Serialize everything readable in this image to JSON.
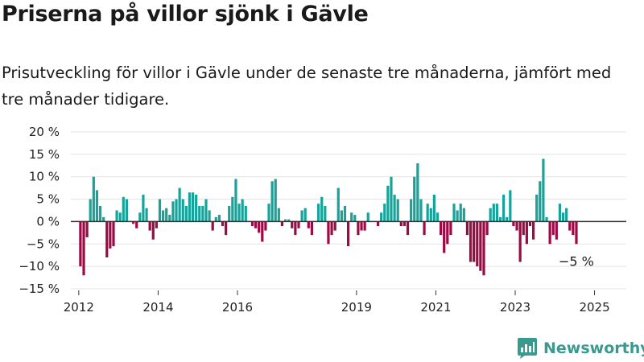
{
  "title": "Priserna på villor sjönk i Gävle",
  "subtitle": "Prisutveckling för villor i Gävle under de senaste tre månaderna, jämfört med tre månader tidigare.",
  "brand": {
    "name": "Newsworthy",
    "icon": "newsworthy-logo-icon",
    "color": "#3a9a90"
  },
  "chart_data": {
    "type": "bar",
    "ylabel": "",
    "xlabel": "",
    "ylim": [
      -15,
      20
    ],
    "yticks": [
      20,
      15,
      10,
      5,
      0,
      -5,
      -10,
      -15
    ],
    "ytick_labels": [
      "20 %",
      "15 %",
      "10 %",
      "5 %",
      "0 %",
      "−5 %",
      "−10 %",
      "−15 %"
    ],
    "xlim": [
      2011.8,
      2025.8
    ],
    "xticks": [
      2012,
      2014,
      2016,
      2019,
      2021,
      2023,
      2025
    ],
    "xtick_labels": [
      "2012",
      "2014",
      "2016",
      "2019",
      "2021",
      "2023",
      "2025"
    ],
    "grid": true,
    "colors": {
      "positive": "#17a39a",
      "negative": "#9c0a45",
      "zero_line": "#333333",
      "grid": "#e3e3e3"
    },
    "annotation": {
      "text": "−5 %"
    },
    "period_start": "2012-01",
    "period_end": "2025-04",
    "values": [
      -10,
      -12,
      -3.5,
      5,
      10,
      7,
      3.5,
      1,
      -8,
      -6,
      -5.5,
      2.5,
      2,
      5.5,
      5,
      0,
      -0.5,
      -1.5,
      2,
      6,
      3,
      -2,
      -4,
      -1.5,
      5,
      2.5,
      3,
      1.5,
      4.5,
      5,
      7.5,
      5,
      3.5,
      6.5,
      6.5,
      6,
      3.5,
      3.5,
      5,
      2.5,
      -2,
      1,
      1.5,
      -1,
      -3,
      3.5,
      5.5,
      9.5,
      4,
      5,
      3.5,
      0,
      -1,
      -1.5,
      -2.5,
      -4.5,
      -2,
      4,
      9,
      9.5,
      3,
      -1,
      0.5,
      0.5,
      -1.5,
      -3,
      -1.5,
      2.5,
      3,
      -1.5,
      -3,
      0,
      4,
      5.5,
      3.5,
      -5,
      -3,
      -2,
      7.5,
      2.5,
      3.5,
      -5.5,
      2,
      1.5,
      -3,
      -2,
      -2,
      2,
      0,
      0,
      -1,
      2,
      4,
      8,
      10,
      6,
      5,
      -1,
      -1,
      -3,
      5,
      10,
      13,
      5,
      -3,
      4,
      3,
      6,
      2,
      -3,
      -7,
      -5,
      -3,
      4,
      2.5,
      4,
      3,
      -3,
      -9,
      -9,
      -10,
      -11,
      -12,
      -3,
      3,
      4,
      4,
      1,
      6,
      1,
      7,
      -1,
      -2,
      -9,
      -3,
      -5,
      -1,
      -4,
      6,
      9,
      14,
      1,
      -5,
      -3,
      -4,
      4,
      2,
      3,
      -2,
      -3,
      -5
    ]
  }
}
